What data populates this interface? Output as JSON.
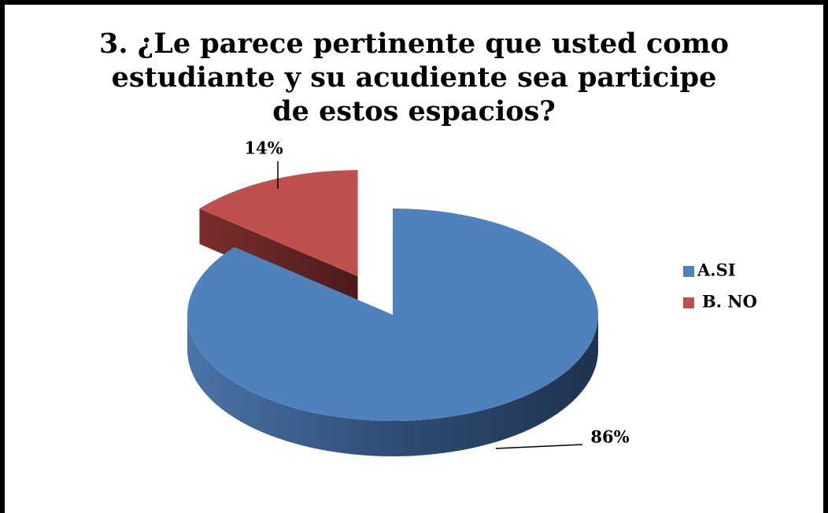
{
  "chart_data": {
    "type": "pie3d",
    "title": "3. ¿Le parece pertinente que usted como estudiante y su acudiente sea participe de estos espacios?",
    "categories": [
      "A.SI",
      "B. NO"
    ],
    "values": [
      86,
      14
    ],
    "value_labels": [
      "86%",
      "14%"
    ],
    "colors": [
      "#4f81bd",
      "#c0504d"
    ],
    "legend": "right"
  }
}
